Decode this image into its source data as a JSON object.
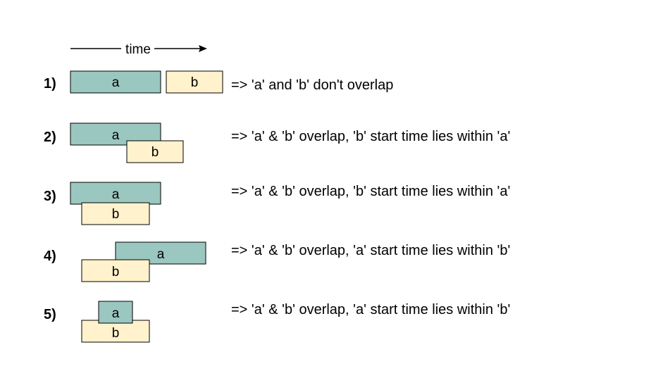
{
  "timeline": {
    "label": "time"
  },
  "colors": {
    "a_fill": "#9ac7bf",
    "b_fill": "#fff2cc",
    "stroke": "#000000"
  },
  "cases": [
    {
      "number": "1)",
      "a_label": "a",
      "b_label": "b",
      "description": "=> 'a' and 'b' don't overlap"
    },
    {
      "number": "2)",
      "a_label": "a",
      "b_label": "b",
      "description": "=> 'a' & 'b' overlap, 'b' start time lies within 'a'"
    },
    {
      "number": "3)",
      "a_label": "a",
      "b_label": "b",
      "description": "=> 'a' & 'b' overlap, 'b' start time lies within 'a'"
    },
    {
      "number": "4)",
      "a_label": "a",
      "b_label": "b",
      "description": "=> 'a' & 'b' overlap, 'a' start time lies within 'b'"
    },
    {
      "number": "5)",
      "a_label": "a",
      "b_label": "b",
      "description": "=> 'a' & 'b' overlap, 'a' start time lies within 'b'"
    }
  ]
}
